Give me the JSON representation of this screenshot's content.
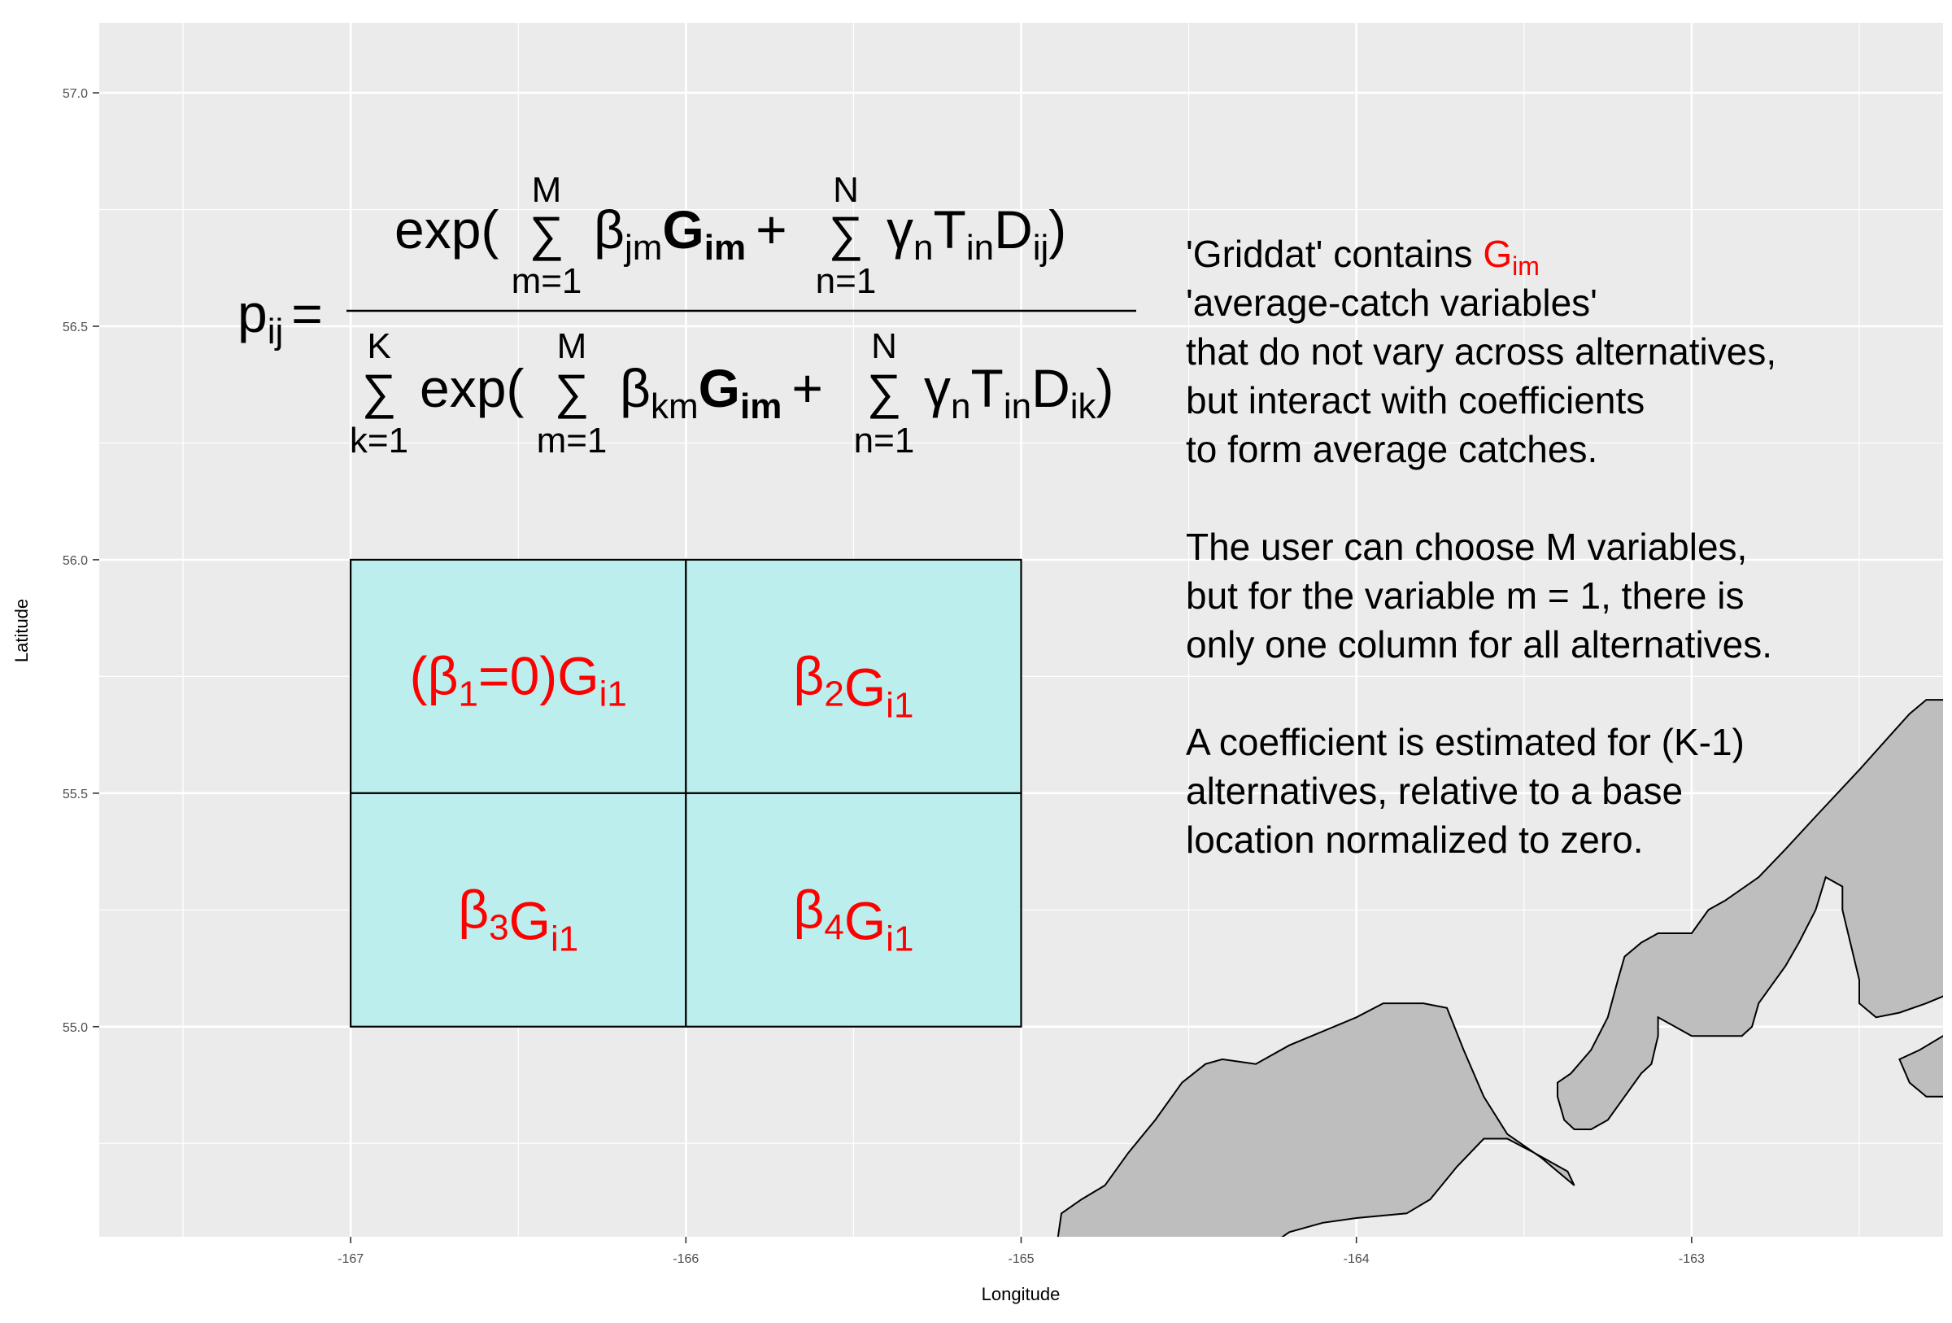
{
  "chart_data": {
    "type": "map",
    "xlabel": "Longitude",
    "ylabel": "Latitude",
    "xlim": [
      -167.75,
      -162.25
    ],
    "ylim": [
      54.55,
      57.15
    ],
    "x_ticks": [
      -167,
      -166,
      -165,
      -164,
      -163
    ],
    "y_ticks": [
      55.0,
      55.5,
      56.0,
      56.5,
      57.0
    ],
    "x_tick_labels": [
      "-167",
      "-166",
      "-165",
      "-164",
      "-163"
    ],
    "y_tick_labels": [
      "55.0",
      "55.5",
      "56.0",
      "56.5",
      "57.0"
    ],
    "grid": true,
    "panel_color": "#ebebeb",
    "grid_cells": [
      {
        "xmin": -167,
        "xmax": -166,
        "ymin": 55.5,
        "ymax": 56.0,
        "label_pre": "(",
        "label_greek": "β",
        "label_sub1": "1",
        "label_mid": "=0)",
        "label_G": "G",
        "label_sub2": "i1"
      },
      {
        "xmin": -166,
        "xmax": -165,
        "ymin": 55.5,
        "ymax": 56.0,
        "label_pre": "",
        "label_greek": "β",
        "label_sub1": "2",
        "label_mid": "",
        "label_G": "G",
        "label_sub2": "i1"
      },
      {
        "xmin": -167,
        "xmax": -166,
        "ymin": 55.0,
        "ymax": 55.5,
        "label_pre": "",
        "label_greek": "β",
        "label_sub1": "3",
        "label_mid": "",
        "label_G": "G",
        "label_sub2": "i1"
      },
      {
        "xmin": -166,
        "xmax": -165,
        "ymin": 55.0,
        "ymax": 55.5,
        "label_pre": "",
        "label_greek": "β",
        "label_sub1": "4",
        "label_mid": "",
        "label_G": "G",
        "label_sub2": "i1"
      }
    ],
    "cell_fill": "#bdeeee",
    "land_fill": "#bebebe",
    "land_polygons": [
      [
        [
          -164.9,
          54.5
        ],
        [
          -164.88,
          54.6
        ],
        [
          -164.82,
          54.63
        ],
        [
          -164.75,
          54.66
        ],
        [
          -164.68,
          54.73
        ],
        [
          -164.6,
          54.8
        ],
        [
          -164.52,
          54.88
        ],
        [
          -164.45,
          54.92
        ],
        [
          -164.4,
          54.93
        ],
        [
          -164.3,
          54.92
        ],
        [
          -164.2,
          54.96
        ],
        [
          -164.1,
          54.99
        ],
        [
          -164.0,
          55.02
        ],
        [
          -163.92,
          55.05
        ],
        [
          -163.8,
          55.05
        ],
        [
          -163.73,
          55.04
        ],
        [
          -163.68,
          54.95
        ],
        [
          -163.62,
          54.85
        ],
        [
          -163.55,
          54.77
        ],
        [
          -163.45,
          54.72
        ],
        [
          -163.35,
          54.66
        ],
        [
          -163.37,
          54.69
        ],
        [
          -163.47,
          54.73
        ],
        [
          -163.55,
          54.76
        ],
        [
          -163.62,
          54.76
        ],
        [
          -163.7,
          54.7
        ],
        [
          -163.78,
          54.63
        ],
        [
          -163.85,
          54.6
        ],
        [
          -164.0,
          54.59
        ],
        [
          -164.1,
          54.58
        ],
        [
          -164.2,
          54.56
        ],
        [
          -164.28,
          54.52
        ],
        [
          -164.35,
          54.47
        ],
        [
          -164.9,
          54.47
        ]
      ],
      [
        [
          -163.4,
          54.88
        ],
        [
          -163.36,
          54.9
        ],
        [
          -163.3,
          54.95
        ],
        [
          -163.25,
          55.02
        ],
        [
          -163.22,
          55.1
        ],
        [
          -163.2,
          55.15
        ],
        [
          -163.15,
          55.18
        ],
        [
          -163.1,
          55.2
        ],
        [
          -163.0,
          55.2
        ],
        [
          -162.95,
          55.25
        ],
        [
          -162.9,
          55.27
        ],
        [
          -162.8,
          55.32
        ],
        [
          -162.72,
          55.38
        ],
        [
          -162.63,
          55.45
        ],
        [
          -162.5,
          55.55
        ],
        [
          -162.4,
          55.63
        ],
        [
          -162.35,
          55.67
        ],
        [
          -162.3,
          55.7
        ],
        [
          -162.2,
          55.7
        ],
        [
          -162.2,
          55.08
        ],
        [
          -162.3,
          55.05
        ],
        [
          -162.38,
          55.03
        ],
        [
          -162.45,
          55.02
        ],
        [
          -162.5,
          55.05
        ],
        [
          -162.5,
          55.1
        ],
        [
          -162.55,
          55.25
        ],
        [
          -162.55,
          55.3
        ],
        [
          -162.6,
          55.32
        ],
        [
          -162.63,
          55.25
        ],
        [
          -162.68,
          55.18
        ],
        [
          -162.72,
          55.13
        ],
        [
          -162.75,
          55.1
        ],
        [
          -162.8,
          55.05
        ],
        [
          -162.82,
          55.0
        ],
        [
          -162.85,
          54.98
        ],
        [
          -162.92,
          54.98
        ],
        [
          -163.0,
          54.98
        ],
        [
          -163.05,
          55.0
        ],
        [
          -163.1,
          55.02
        ],
        [
          -163.1,
          54.98
        ],
        [
          -163.12,
          54.92
        ],
        [
          -163.15,
          54.9
        ],
        [
          -163.2,
          54.85
        ],
        [
          -163.25,
          54.8
        ],
        [
          -163.3,
          54.78
        ],
        [
          -163.35,
          54.78
        ],
        [
          -163.38,
          54.8
        ],
        [
          -163.4,
          54.85
        ]
      ],
      [
        [
          -162.38,
          54.93
        ],
        [
          -162.32,
          54.95
        ],
        [
          -162.25,
          54.98
        ],
        [
          -162.2,
          55.0
        ],
        [
          -162.2,
          54.87
        ],
        [
          -162.25,
          54.85
        ],
        [
          -162.3,
          54.85
        ],
        [
          -162.35,
          54.88
        ]
      ]
    ]
  },
  "equation": {
    "lhs": "p",
    "lhs_sub": "ij",
    "equals": "=",
    "exp": "exp(",
    "sum": "∑",
    "plus": "+",
    "close": ")",
    "M": "M",
    "N": "N",
    "K": "K",
    "m1": "m=1",
    "n1": "n=1",
    "k1": "k=1",
    "beta": "β",
    "gamma": "γ",
    "jm": "jm",
    "km": "km",
    "G": "G",
    "im": "im",
    "n": "n",
    "T": "T",
    "in": "in",
    "D": "D",
    "ij": "ij",
    "ik": "ik"
  },
  "note": {
    "line1_prefix": "'Griddat' contains ",
    "line1_G": "G",
    "line1_sub": "im",
    "lines_a": [
      "'average-catch variables'",
      "that do not vary across alternatives,",
      "but interact with coefficients",
      "to form average catches."
    ],
    "lines_b": [
      "The user can choose M variables,",
      "but for the variable m = 1, there is",
      "only one column for all alternatives."
    ],
    "lines_c": [
      "A coefficient is estimated for (K-1)",
      "alternatives, relative to a base",
      "location normalized to zero."
    ]
  }
}
